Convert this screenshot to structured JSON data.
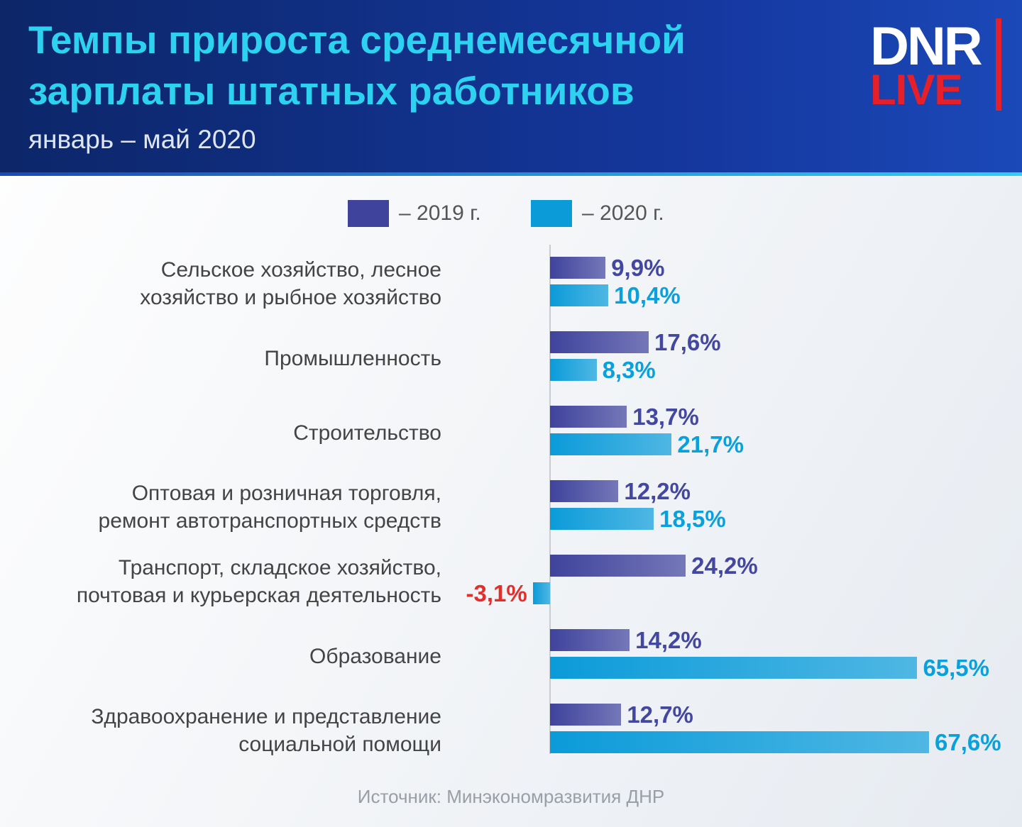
{
  "chart_data": {
    "type": "bar",
    "title": [
      "Темпы прироста среднемесячной",
      "зарплаты штатных работников"
    ],
    "subtitle": "январь – май 2020",
    "logo": [
      "DNR",
      "LIVE"
    ],
    "categories": [
      "Сельское хозяйство, лесное\nхозяйство и рыбное хозяйство",
      "Промышленность",
      "Строительство",
      "Оптовая и розничная торговля,\nремонт автотранспортных средств",
      "Транспорт, складское хозяйство,\nпочтовая и курьерская деятельность",
      "Образование",
      "Здравоохранение и представление\nсоциальной помощи"
    ],
    "series": [
      {
        "name": "– 2019 г.",
        "color": "#3f439c",
        "label_color": "#43479f",
        "values": [
          9.9,
          17.6,
          13.7,
          12.2,
          24.2,
          14.2,
          12.7
        ],
        "value_labels": [
          "9,9%",
          "17,6%",
          "13,7%",
          "12,2%",
          "24,2%",
          "14,2%",
          "12,7%"
        ]
      },
      {
        "name": "– 2020 г.",
        "color": "#0b9bd9",
        "label_color": "#0aa0dc",
        "values": [
          10.4,
          8.3,
          21.7,
          18.5,
          -3.1,
          65.5,
          67.6
        ],
        "value_labels": [
          "10,4%",
          "8,3%",
          "21,7%",
          "18,5%",
          "-3,1%",
          "65,5%",
          "67,6%"
        ]
      }
    ],
    "negative_label_color": "#e32f2c",
    "source": "Источник: Минэкономразвития ДНР"
  }
}
